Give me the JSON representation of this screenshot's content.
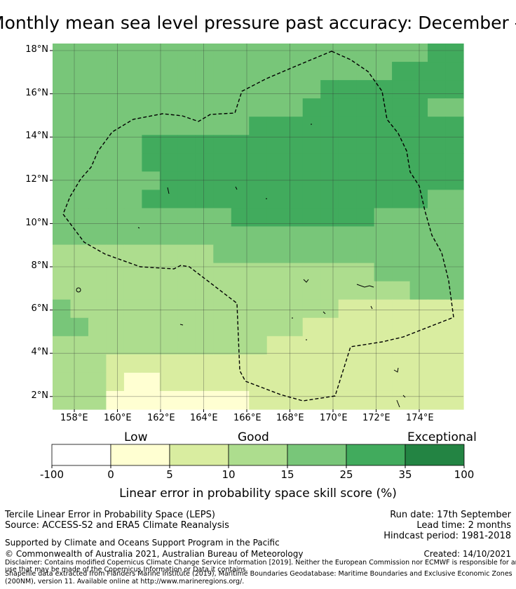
{
  "title": "Monthly mean sea level pressure past accuracy: December - March",
  "map": {
    "lat_ticks": [
      "18°N",
      "16°N",
      "14°N",
      "12°N",
      "10°N",
      "8°N",
      "6°N",
      "4°N",
      "2°N"
    ],
    "lon_ticks": [
      "158°E",
      "160°E",
      "162°E",
      "164°E",
      "166°E",
      "168°E",
      "170°E",
      "172°E",
      "174°E"
    ],
    "lon_range": [
      157.0,
      176.0
    ],
    "lat_range": [
      1.4,
      18.3
    ],
    "skill_grid_units": "linear error in probability space skill score (%) category index",
    "boundary_name": "Marshall Islands exclusive economic zone",
    "colors": [
      "#ffffff",
      "#ffffd2",
      "#d9eda0",
      "#addd8e",
      "#78c679",
      "#41ab5d",
      "#238443"
    ]
  },
  "colorbar": {
    "category_labels": [
      "Low",
      "Good",
      "Exceptional"
    ],
    "tick_labels": [
      "-100",
      "0",
      "5",
      "10",
      "15",
      "25",
      "35",
      "100"
    ],
    "title": "Linear error in probability space skill score (%)"
  },
  "footer": {
    "left_line1": "Tercile Linear Error in Probability Space (LEPS)",
    "left_line2": "Source: ACCESS-S2 and ERA5 Climate Reanalysis",
    "right_line1": "Run date: 17th September",
    "right_line2": "Lead time: 2 months",
    "right_line3": "Hindcast period: 1981-2018",
    "support": "Supported by Climate and Oceans Support Program in the Pacific",
    "copyright": "© Commonwealth of Australia 2021, Australian Bureau of Meteorology",
    "created": "Created: 14/10/2021",
    "disclaimer1": "Disclaimer: Contains modified Copernicus Climate Change Service Information [2019]. Neither the European Commission nor ECMWF is responsible for any",
    "disclaimer2": "use that may be made of the Copernicus Information or Data it contains.",
    "disclaimer3": "Shapefile data extracted from Flanders Marine Institute (2019), Maritime Boundaries Geodatabase: Maritime Boundaries and Exclusive Economic Zones",
    "disclaimer4": "(200NM), version 11. Available online at http://www.marineregions.org/."
  }
}
